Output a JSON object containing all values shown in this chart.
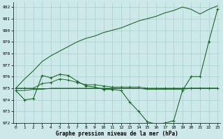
{
  "xlabel": "Graphe pression niveau de la mer (hPa)",
  "xlim": [
    -0.5,
    23.5
  ],
  "ylim": [
    972,
    982.4
  ],
  "yticks": [
    972,
    973,
    974,
    975,
    976,
    977,
    978,
    979,
    980,
    981,
    982
  ],
  "xticks": [
    0,
    1,
    2,
    3,
    4,
    5,
    6,
    7,
    8,
    9,
    10,
    11,
    12,
    13,
    14,
    15,
    16,
    17,
    18,
    19,
    20,
    21,
    22,
    23
  ],
  "bg_color": "#cce8e8",
  "grid_color": "#aacece",
  "line_color": "#1a6b2a",
  "line_color2": "#2d7a3a",
  "line_rising_y": [
    975.0,
    975.8,
    976.5,
    977.3,
    977.8,
    978.2,
    978.6,
    979.0,
    979.3,
    979.5,
    979.8,
    980.0,
    980.2,
    980.5,
    980.8,
    981.0,
    981.2,
    981.5,
    981.7,
    982.0,
    981.8,
    981.4,
    981.8,
    982.1
  ],
  "line_main_y": [
    974.8,
    974.0,
    974.1,
    976.1,
    975.9,
    976.2,
    976.1,
    975.6,
    975.2,
    975.1,
    974.9,
    974.9,
    974.8,
    973.8,
    973.0,
    972.1,
    971.9,
    972.0,
    972.2,
    974.8,
    976.0,
    976.0,
    979.0,
    981.8
  ],
  "line_flat1_y": [
    975.0,
    975.0,
    975.0,
    975.0,
    975.0,
    975.0,
    975.0,
    975.0,
    975.0,
    975.0,
    975.0,
    975.0,
    975.0,
    975.0,
    975.0,
    975.0,
    975.0,
    975.0,
    975.0,
    975.0,
    975.0,
    975.0,
    975.0,
    975.0
  ],
  "line_flat2_y": [
    974.8,
    974.8,
    974.9,
    974.9,
    975.0,
    975.0,
    975.0,
    975.0,
    975.0,
    975.0,
    975.0,
    975.0,
    975.0,
    975.0,
    975.0,
    974.9,
    974.9,
    974.9,
    974.9,
    974.9,
    975.0,
    975.0,
    975.0,
    975.0
  ],
  "line_mid_y": [
    975.0,
    975.0,
    975.0,
    975.4,
    975.5,
    975.8,
    975.7,
    975.5,
    975.3,
    975.3,
    975.2,
    975.1,
    975.1,
    975.1,
    975.1,
    975.0,
    975.0,
    975.0,
    975.0,
    975.0,
    975.0,
    975.0,
    975.0,
    975.0
  ]
}
